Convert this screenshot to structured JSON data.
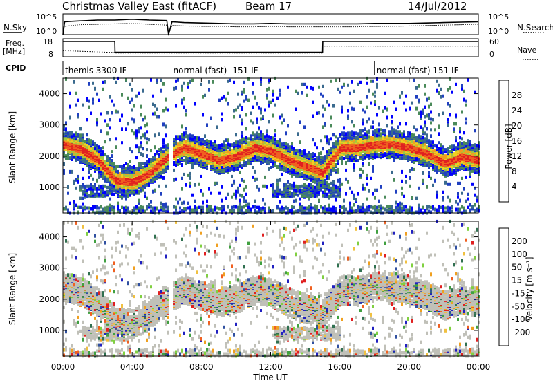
{
  "header": {
    "title": "Christmas Valley East (fitACF)",
    "beam": "Beam 17",
    "date": "14/Jul/2012"
  },
  "strip_labels": {
    "nsky": "N.Sky",
    "nsearch": "N.Search",
    "freq": "Freq.",
    "freq_unit": "[MHz]",
    "nave": "Nave",
    "cpid": "CPID",
    "noise_ticks_left": [
      "10^5",
      "10^0"
    ],
    "noise_ticks_right": [
      "10^5",
      "10^0"
    ],
    "freq_ticks": [
      "18",
      "8"
    ],
    "nave_ticks": [
      "60",
      "0"
    ]
  },
  "cpid_segments": [
    {
      "label": "themis 3300 IF",
      "start_h": 0.0,
      "end_h": 6.1
    },
    {
      "label": "normal (fast) -151 IF",
      "start_h": 6.25,
      "end_h": 18.0
    },
    {
      "label": "normal (fast) 151 IF",
      "start_h": 18.0,
      "end_h": 24.0
    }
  ],
  "chart_data": [
    {
      "type": "line",
      "panel": "noise",
      "ylabel_left": "N.Sky",
      "ylabel_right": "N.Search",
      "x": [
        0,
        0.1,
        0.5,
        1,
        2,
        3,
        4,
        5,
        6,
        6.1,
        6.3,
        7,
        8,
        9,
        10,
        11,
        12,
        13,
        14,
        15,
        16,
        17,
        18,
        19,
        20,
        21,
        22,
        23,
        24
      ],
      "series": [
        {
          "name": "N.Sky",
          "values": [
            0.0,
            3.1,
            3.2,
            3.3,
            3.5,
            3.5,
            3.7,
            3.5,
            3.4,
            0.0,
            3.1,
            2.9,
            2.8,
            2.7,
            2.6,
            2.6,
            2.7,
            2.6,
            2.6,
            2.6,
            2.6,
            2.6,
            2.7,
            2.7,
            2.7,
            2.8,
            2.9,
            3.0,
            3.1
          ]
        },
        {
          "name": "N.Search",
          "values": [
            0.0,
            2.0,
            2.2,
            2.4,
            2.5,
            2.6,
            2.7,
            2.5,
            2.3,
            0.0,
            2.2,
            2.1,
            2.0,
            2.0,
            1.9,
            1.9,
            2.0,
            1.9,
            1.9,
            1.9,
            1.9,
            1.9,
            2.0,
            2.0,
            2.1,
            2.2,
            2.3,
            2.4,
            2.5
          ]
        }
      ],
      "ylim": [
        0,
        5
      ]
    },
    {
      "type": "line",
      "panel": "frequency",
      "ylabel": "Freq. [MHz]",
      "ylabel_right": "Nave",
      "x": [
        0,
        3.0,
        3.01,
        6.1,
        6.3,
        15.0,
        15.01,
        24
      ],
      "series": [
        {
          "name": "Freq.",
          "values": [
            16.5,
            16.5,
            10.5,
            10.5,
            10.5,
            10.5,
            16.5,
            16.5
          ]
        },
        {
          "name": "Nave",
          "values": [
            20,
            14,
            12,
            12,
            12,
            12,
            35,
            35
          ]
        }
      ],
      "ylim": [
        8,
        18
      ],
      "y2lim": [
        0,
        60
      ]
    },
    {
      "type": "heatmap",
      "panel": "power",
      "xlabel": "",
      "ylabel": "Slant Range [km]",
      "colorbar_label": "Power [dB]",
      "colorbar_ticks": [
        "28",
        "24",
        "20",
        "16",
        "12",
        "8",
        "4"
      ],
      "colorbar_range": [
        0,
        32
      ],
      "colorbar_colors": [
        "#0000ff",
        "#2040c0",
        "#3a6a8e",
        "#4a8a5a",
        "#5aa050",
        "#a0c840",
        "#f0d020",
        "#f0a020",
        "#f06020",
        "#e02020"
      ],
      "x_ticks": [
        "00:00",
        "04:00",
        "08:00",
        "12:00",
        "16:00",
        "20:00",
        "00:00"
      ],
      "y_ticks": [
        "1000",
        "2000",
        "3000",
        "4000"
      ],
      "xlim": [
        0,
        24
      ],
      "ylim": [
        180,
        4500
      ],
      "main_echo_track": {
        "hours": [
          0,
          1,
          2,
          3,
          4,
          5,
          6,
          7,
          8,
          9,
          10,
          11,
          12,
          13,
          14,
          15,
          16,
          17,
          18,
          19,
          20,
          21,
          22,
          23,
          24
        ],
        "range_km": [
          2400,
          2250,
          1900,
          1250,
          1200,
          1500,
          2000,
          2300,
          2100,
          1900,
          2000,
          2300,
          2200,
          1900,
          1700,
          1500,
          2300,
          2300,
          2400,
          2400,
          2300,
          2100,
          1800,
          2000,
          1900
        ]
      }
    },
    {
      "type": "heatmap",
      "panel": "velocity",
      "xlabel": "Time UT",
      "ylabel": "Slant Range [km]",
      "colorbar_label": "Velocity [m s⁻¹]",
      "colorbar_ticks": [
        "200",
        "100",
        "50",
        "15",
        "-15",
        "-50",
        "-100",
        "-200"
      ],
      "colorbar_range": [
        -250,
        250
      ],
      "colorbar_colors": [
        "#e02020",
        "#f06020",
        "#f0a020",
        "#f0c040",
        "#c0c0b8",
        "#80d040",
        "#40a040",
        "#307050",
        "#3050a0",
        "#2020c0"
      ],
      "x_ticks": [
        "00:00",
        "04:00",
        "08:00",
        "12:00",
        "16:00",
        "20:00",
        "00:00"
      ],
      "y_ticks": [
        "1000",
        "2000",
        "3000",
        "4000"
      ],
      "xlim": [
        0,
        24
      ],
      "ylim": [
        180,
        4500
      ]
    }
  ]
}
